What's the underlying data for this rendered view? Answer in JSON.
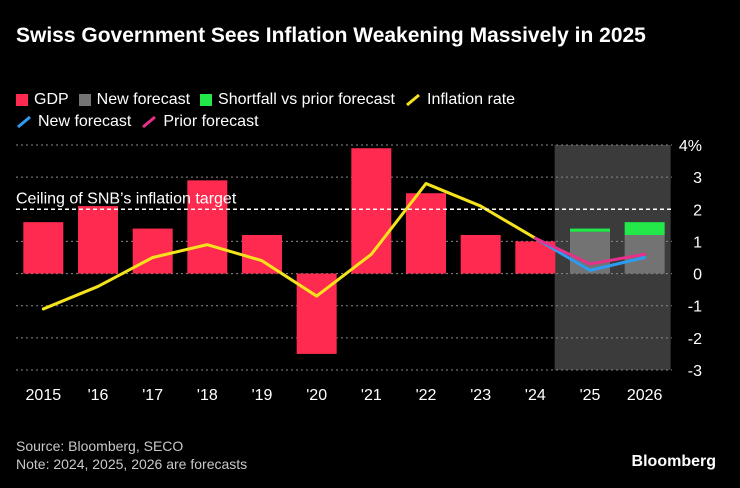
{
  "chart_data": {
    "type": "bar",
    "title": "Swiss Government Sees Inflation Weakening Massively in 2025",
    "categories": [
      "2015",
      "'16",
      "'17",
      "'18",
      "'19",
      "'20",
      "'21",
      "'22",
      "'23",
      "'24",
      "'25",
      "2026"
    ],
    "ylim": [
      -3,
      4
    ],
    "yticks": [
      4,
      3,
      2,
      1,
      0,
      -1,
      -2,
      -3
    ],
    "ytick_labels": [
      "4%",
      "3",
      "2",
      "1",
      "0",
      "-1",
      "-2",
      "-3"
    ],
    "forecast_shade_categories": [
      "'25",
      "2026"
    ],
    "reference_line": {
      "value": 2,
      "label": "Ceiling of SNB’s inflation target"
    },
    "legend": {
      "gdp": "GDP",
      "new_forecast_bar": "New forecast",
      "shortfall": "Shortfall vs prior forecast",
      "inflation": "Inflation rate",
      "new_forecast_line": "New forecast",
      "prior_forecast_line": "Prior forecast"
    },
    "series": [
      {
        "name": "GDP",
        "kind": "bar",
        "color": "#ff2a4f",
        "values": [
          1.6,
          2.1,
          1.4,
          2.9,
          1.2,
          -2.5,
          3.9,
          2.5,
          1.2,
          1.0,
          null,
          null
        ]
      },
      {
        "name": "New forecast",
        "kind": "bar",
        "color": "#737373",
        "values": [
          null,
          null,
          null,
          null,
          null,
          null,
          null,
          null,
          null,
          null,
          1.3,
          1.2
        ]
      },
      {
        "name": "Shortfall vs prior forecast",
        "kind": "bar-stack",
        "color": "#23e84a",
        "values": [
          null,
          null,
          null,
          null,
          null,
          null,
          null,
          null,
          null,
          null,
          0.1,
          0.4
        ]
      },
      {
        "name": "Inflation rate",
        "kind": "line",
        "color": "#f5e31c",
        "values": [
          -1.1,
          -0.4,
          0.5,
          0.9,
          0.4,
          -0.7,
          0.6,
          2.8,
          2.1,
          1.1,
          null,
          null
        ]
      },
      {
        "name": "New forecast",
        "kind": "line",
        "color": "#2d9cf0",
        "values": [
          null,
          null,
          null,
          null,
          null,
          null,
          null,
          null,
          null,
          1.1,
          0.1,
          0.5
        ]
      },
      {
        "name": "Prior forecast",
        "kind": "line",
        "color": "#e6308a",
        "values": [
          null,
          null,
          null,
          null,
          null,
          null,
          null,
          null,
          null,
          1.1,
          0.3,
          0.6
        ]
      }
    ]
  },
  "footer": {
    "source": "Source: Bloomberg, SECO",
    "note": "Note: 2024, 2025, 2026 are forecasts"
  },
  "brand": "Bloomberg"
}
